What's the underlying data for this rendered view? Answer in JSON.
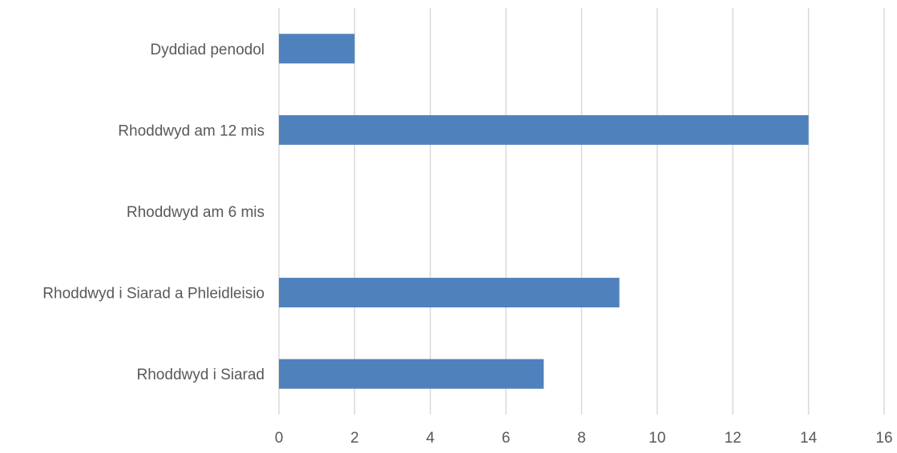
{
  "chart_data": {
    "type": "bar",
    "orientation": "horizontal",
    "categories": [
      "Dyddiad penodol",
      "Rhoddwyd am 12 mis",
      "Rhoddwyd am 6 mis",
      "Rhoddwyd i Siarad a Phleidleisio",
      "Rhoddwyd i Siarad"
    ],
    "values": [
      2,
      14,
      0,
      9,
      7
    ],
    "title": "",
    "xlabel": "",
    "ylabel": "",
    "xlim": [
      0,
      16
    ],
    "x_ticks": [
      "0",
      "2",
      "4",
      "6",
      "8",
      "10",
      "12",
      "14",
      "16"
    ],
    "grid": "vertical",
    "legend": "none",
    "bar_color": "#4f81bd"
  }
}
